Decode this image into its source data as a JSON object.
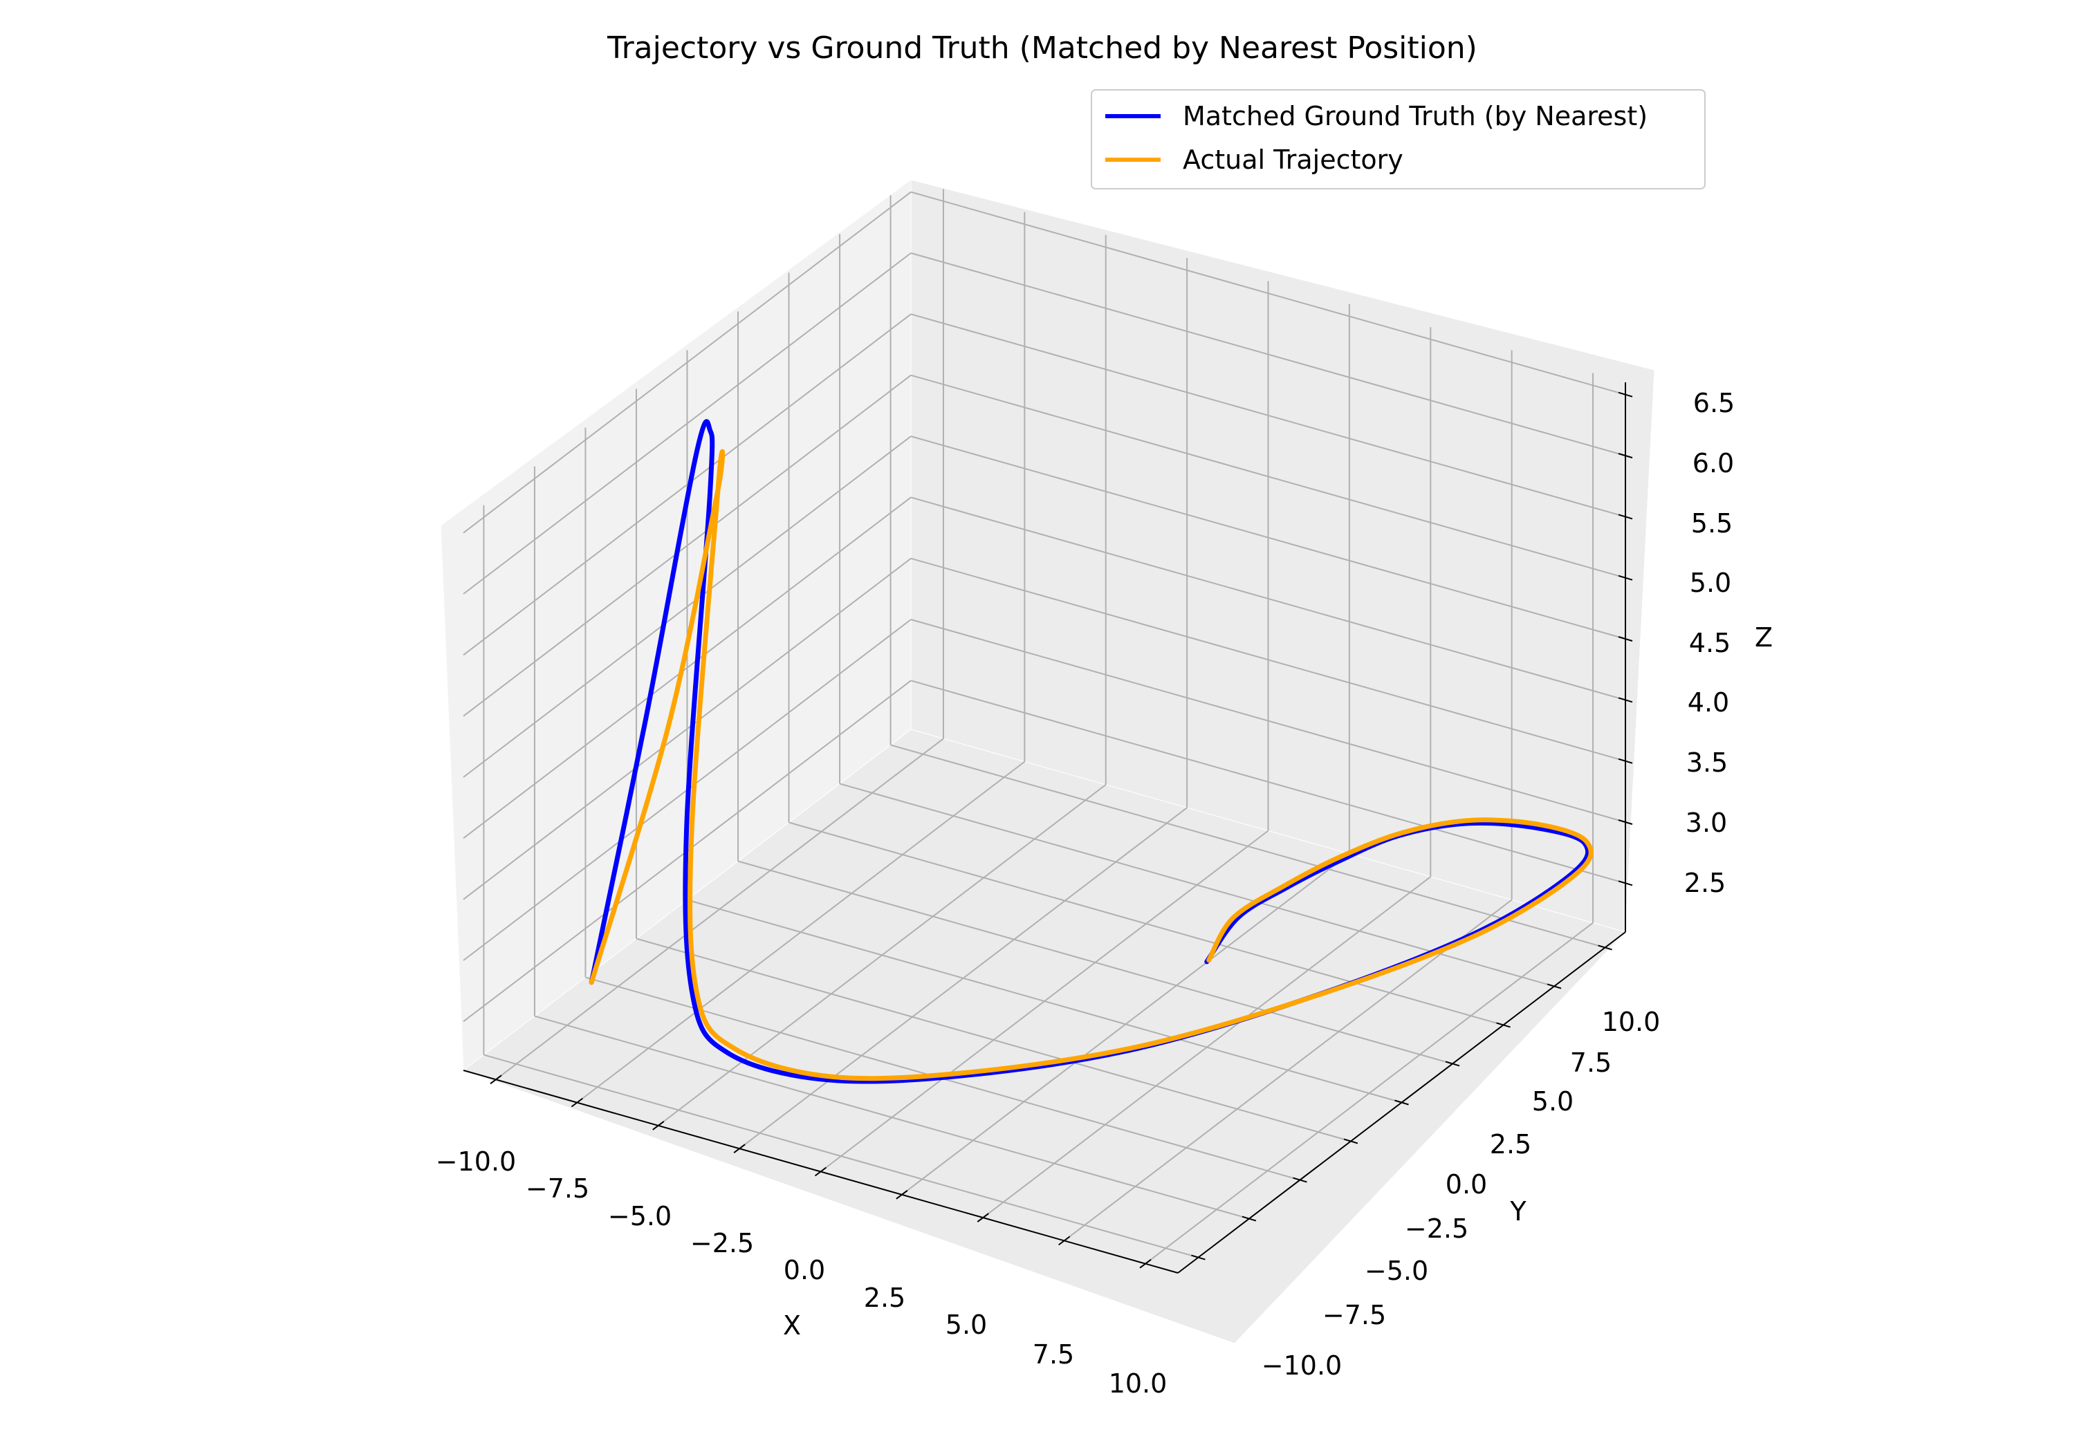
{
  "chart_data": {
    "type": "line",
    "projection": "3d",
    "title": "Trajectory vs Ground Truth (Matched by Nearest Position)",
    "xlabel": "X",
    "ylabel": "Y",
    "zlabel": "Z",
    "xlim": [
      -11,
      11
    ],
    "ylim": [
      -11,
      11
    ],
    "zlim": [
      2.1,
      6.6
    ],
    "xticks": [
      "−10.0",
      "−7.5",
      "−5.0",
      "−2.5",
      "0.0",
      "2.5",
      "5.0",
      "7.5",
      "10.0"
    ],
    "yticks": [
      "−10.0",
      "−7.5",
      "−5.0",
      "−2.5",
      "0.0",
      "2.5",
      "5.0",
      "7.5",
      "10.0"
    ],
    "zticks": [
      "2.5",
      "3.0",
      "3.5",
      "4.0",
      "4.5",
      "5.0",
      "5.5",
      "6.0",
      "6.5"
    ],
    "grid": true,
    "legend_position": "top-right",
    "series": [
      {
        "name": "Matched Ground Truth (by Nearest)",
        "color": "#0000ff",
        "points": [
          [
            5.0,
            0.0,
            2.8
          ],
          [
            4.4,
            2.5,
            2.8
          ],
          [
            4.6,
            4.5,
            2.8
          ],
          [
            5.0,
            6.5,
            2.8
          ],
          [
            5.6,
            8.5,
            2.8
          ],
          [
            6.8,
            10.0,
            2.8
          ],
          [
            8.5,
            10.7,
            2.8
          ],
          [
            10.0,
            10.6,
            2.8
          ],
          [
            10.6,
            9.0,
            2.8
          ],
          [
            10.2,
            5.0,
            2.8
          ],
          [
            8.5,
            0.0,
            2.8
          ],
          [
            6.0,
            -5.0,
            2.8
          ],
          [
            3.0,
            -8.5,
            2.8
          ],
          [
            0.0,
            -10.6,
            2.8
          ],
          [
            -3.0,
            -10.7,
            2.8
          ],
          [
            -5.5,
            -8.5,
            2.8
          ],
          [
            -7.7,
            -5.3,
            3.6
          ],
          [
            -9.8,
            -0.8,
            5.6
          ],
          [
            -10.3,
            0.0,
            6.0
          ],
          [
            -10.6,
            -0.2,
            5.8
          ],
          [
            -10.4,
            -3.0,
            4.0
          ],
          [
            -10.0,
            -6.3,
            2.3
          ]
        ]
      },
      {
        "name": "Actual Trajectory",
        "color": "#ffa500",
        "points": [
          [
            5.0,
            0.1,
            2.8
          ],
          [
            4.3,
            2.4,
            2.8
          ],
          [
            4.5,
            4.6,
            2.8
          ],
          [
            4.9,
            6.7,
            2.8
          ],
          [
            5.6,
            8.7,
            2.8
          ],
          [
            6.8,
            10.2,
            2.8
          ],
          [
            8.5,
            10.9,
            2.8
          ],
          [
            10.0,
            10.7,
            2.8
          ],
          [
            10.7,
            9.1,
            2.8
          ],
          [
            10.3,
            5.0,
            2.8
          ],
          [
            8.6,
            0.2,
            2.8
          ],
          [
            6.1,
            -4.7,
            2.8
          ],
          [
            3.0,
            -8.3,
            2.8
          ],
          [
            0.0,
            -10.4,
            2.8
          ],
          [
            -3.0,
            -10.4,
            2.8
          ],
          [
            -5.5,
            -8.3,
            2.8
          ],
          [
            -7.6,
            -5.2,
            3.6
          ],
          [
            -9.6,
            -0.7,
            5.7
          ],
          [
            -9.7,
            -0.6,
            5.6
          ],
          [
            -9.7,
            -3.0,
            4.0
          ],
          [
            -10.0,
            -6.3,
            2.3
          ]
        ]
      }
    ]
  }
}
